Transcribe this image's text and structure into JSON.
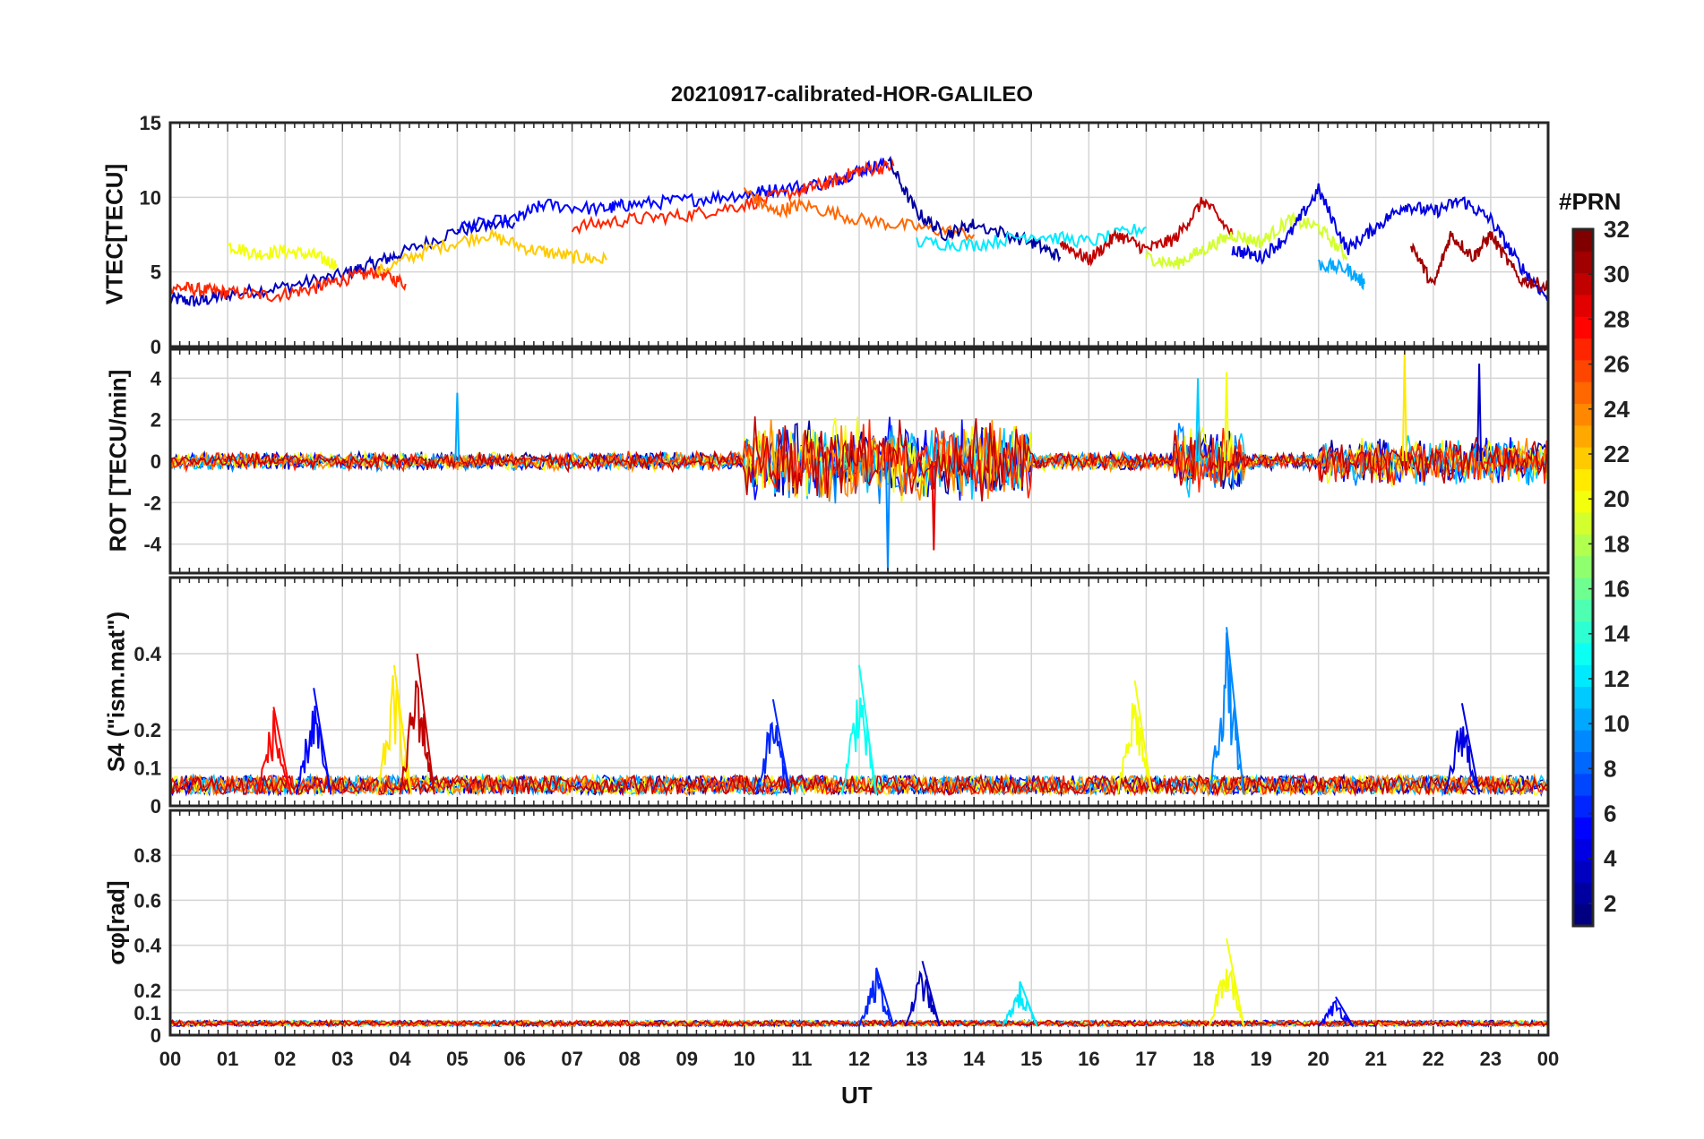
{
  "title": "20210917-calibrated-HOR-GALILEO",
  "chart_data": [
    {
      "type": "line",
      "panel": "vtec",
      "ylabel": "VTEC[TECU]",
      "ylim": [
        0,
        15
      ],
      "yticks": [
        0,
        5,
        10,
        15
      ],
      "x_ticks": [
        "00",
        "01",
        "02",
        "03",
        "04",
        "05",
        "06",
        "07",
        "08",
        "09",
        "10",
        "11",
        "12",
        "13",
        "14",
        "15",
        "16",
        "17",
        "18",
        "19",
        "20",
        "21",
        "22",
        "23",
        "00"
      ],
      "series": [
        {
          "prn": 3,
          "x": [
            0.0,
            0.5,
            1.0,
            2.0,
            3.0,
            3.5,
            4.0,
            5.0,
            6.0
          ],
          "values": [
            3.2,
            3.0,
            3.5,
            4.0,
            4.8,
            5.5,
            6.2,
            7.8,
            8.3
          ]
        },
        {
          "prn": 27,
          "x": [
            0.0,
            0.5,
            1.0,
            1.8,
            2.5,
            3.0,
            3.6,
            4.1
          ],
          "values": [
            4.0,
            3.8,
            3.6,
            3.4,
            3.9,
            4.5,
            5.0,
            4.2
          ]
        },
        {
          "prn": 20,
          "x": [
            1.0,
            1.5,
            2.0,
            2.5,
            2.9
          ],
          "values": [
            6.8,
            6.2,
            6.4,
            6.1,
            5.5
          ]
        },
        {
          "prn": 22,
          "x": [
            3.6,
            4.5,
            5.5,
            6.3,
            7.0,
            7.6
          ],
          "values": [
            5.0,
            6.5,
            7.5,
            6.5,
            6.0,
            5.8
          ]
        },
        {
          "prn": 5,
          "x": [
            5.0,
            6.0,
            6.5,
            7.5,
            8.0,
            9.0,
            10.0,
            10.5,
            11.5,
            12.0,
            12.5
          ],
          "values": [
            8.0,
            8.5,
            9.5,
            9.2,
            9.5,
            9.8,
            10.2,
            10.5,
            11.0,
            11.8,
            12.3
          ]
        },
        {
          "prn": 27,
          "x": [
            7.0,
            8.0,
            9.0,
            10.0,
            11.0,
            11.5,
            12.0,
            12.6
          ],
          "values": [
            8.0,
            8.5,
            8.8,
            9.5,
            10.5,
            11.0,
            11.8,
            12.1
          ]
        },
        {
          "prn": 25,
          "x": [
            10.0,
            10.5,
            11.0,
            12.0,
            13.0,
            14.0
          ],
          "values": [
            10.5,
            9.0,
            9.5,
            8.5,
            8.0,
            7.5
          ]
        },
        {
          "prn": 2,
          "x": [
            12.5,
            13.0,
            13.5,
            14.0,
            15.0,
            15.5
          ],
          "values": [
            12.5,
            9.0,
            7.5,
            8.2,
            7.0,
            6.0
          ]
        },
        {
          "prn": 12,
          "x": [
            13.0,
            14.0,
            15.0,
            16.0,
            17.0
          ],
          "values": [
            7.0,
            6.8,
            7.5,
            7.0,
            8.0
          ]
        },
        {
          "prn": 30,
          "x": [
            15.5,
            16.0,
            16.5,
            17.0,
            17.5,
            18.0,
            18.5
          ],
          "values": [
            7.0,
            5.8,
            7.5,
            6.5,
            7.2,
            9.8,
            7.5
          ]
        },
        {
          "prn": 19,
          "x": [
            17.0,
            17.5,
            18.0,
            18.5,
            19.0,
            19.5,
            20.0,
            20.5
          ],
          "values": [
            6.0,
            5.5,
            6.5,
            7.5,
            7.0,
            8.5,
            8.0,
            6.0
          ]
        },
        {
          "prn": 4,
          "x": [
            18.5,
            19.0,
            19.5,
            20.0,
            20.5,
            21.0,
            21.5,
            22.0,
            22.5,
            23.0,
            23.5,
            24.0
          ],
          "values": [
            6.5,
            6.0,
            7.5,
            10.5,
            6.5,
            8.0,
            9.5,
            9.0,
            9.8,
            8.5,
            5.5,
            3.2
          ]
        },
        {
          "prn": 10,
          "x": [
            20.0,
            20.5,
            20.8
          ],
          "values": [
            5.5,
            5.2,
            4.2
          ]
        },
        {
          "prn": 31,
          "x": [
            21.6,
            22.0,
            22.3,
            22.7,
            23.0,
            23.5,
            24.0
          ],
          "values": [
            7.0,
            4.0,
            7.5,
            6.0,
            7.5,
            4.5,
            4.0
          ]
        }
      ]
    },
    {
      "type": "line",
      "panel": "rot",
      "ylabel": "ROT [TECU/min]",
      "ylim": [
        -5.4,
        5.4
      ],
      "yticks": [
        -4,
        -2,
        0,
        2,
        4
      ],
      "annotations": [
        {
          "prn": 9,
          "x": 12.5,
          "value": -5.3
        },
        {
          "prn": 29,
          "x": 13.3,
          "value": -4.3
        },
        {
          "prn": 11,
          "x": 17.9,
          "value": 4.0
        },
        {
          "prn": 20,
          "x": 18.4,
          "value": 4.3
        },
        {
          "prn": 21,
          "x": 21.5,
          "value": 5.3
        },
        {
          "prn": 3,
          "x": 22.8,
          "value": 4.7
        },
        {
          "prn": 10,
          "x": 5.0,
          "value": 3.3
        }
      ]
    },
    {
      "type": "line",
      "panel": "s4",
      "ylabel": "S4 (\"ism.mat\")",
      "ylim": [
        0,
        0.6
      ],
      "yticks": [
        0,
        0.1,
        0.2,
        0.4
      ],
      "peaks": [
        {
          "prn": 28,
          "x": 1.8,
          "value": 0.26
        },
        {
          "prn": 5,
          "x": 2.5,
          "value": 0.31
        },
        {
          "prn": 21,
          "x": 3.9,
          "value": 0.37
        },
        {
          "prn": 30,
          "x": 4.3,
          "value": 0.4
        },
        {
          "prn": 6,
          "x": 10.5,
          "value": 0.28
        },
        {
          "prn": 13,
          "x": 12.0,
          "value": 0.37
        },
        {
          "prn": 20,
          "x": 16.8,
          "value": 0.33
        },
        {
          "prn": 9,
          "x": 18.4,
          "value": 0.47
        },
        {
          "prn": 4,
          "x": 22.5,
          "value": 0.27
        }
      ]
    },
    {
      "type": "line",
      "panel": "sigma_phi",
      "ylabel": "σφ[rad]",
      "ylim": [
        0,
        1.0
      ],
      "yticks": [
        0,
        0.1,
        0.2,
        0.4,
        0.6,
        0.8
      ],
      "peaks": [
        {
          "prn": 6,
          "x": 12.3,
          "value": 0.3
        },
        {
          "prn": 3,
          "x": 13.1,
          "value": 0.33
        },
        {
          "prn": 12,
          "x": 14.8,
          "value": 0.24
        },
        {
          "prn": 20,
          "x": 18.4,
          "value": 0.43
        },
        {
          "prn": 5,
          "x": 20.3,
          "value": 0.17
        }
      ]
    }
  ],
  "xlabel": "UT",
  "colorbar": {
    "title": "#PRN",
    "range": [
      1,
      32
    ],
    "tick_labels": [
      "2",
      "4",
      "6",
      "8",
      "10",
      "12",
      "14",
      "16",
      "18",
      "20",
      "22",
      "24",
      "26",
      "28",
      "30",
      "32"
    ]
  }
}
